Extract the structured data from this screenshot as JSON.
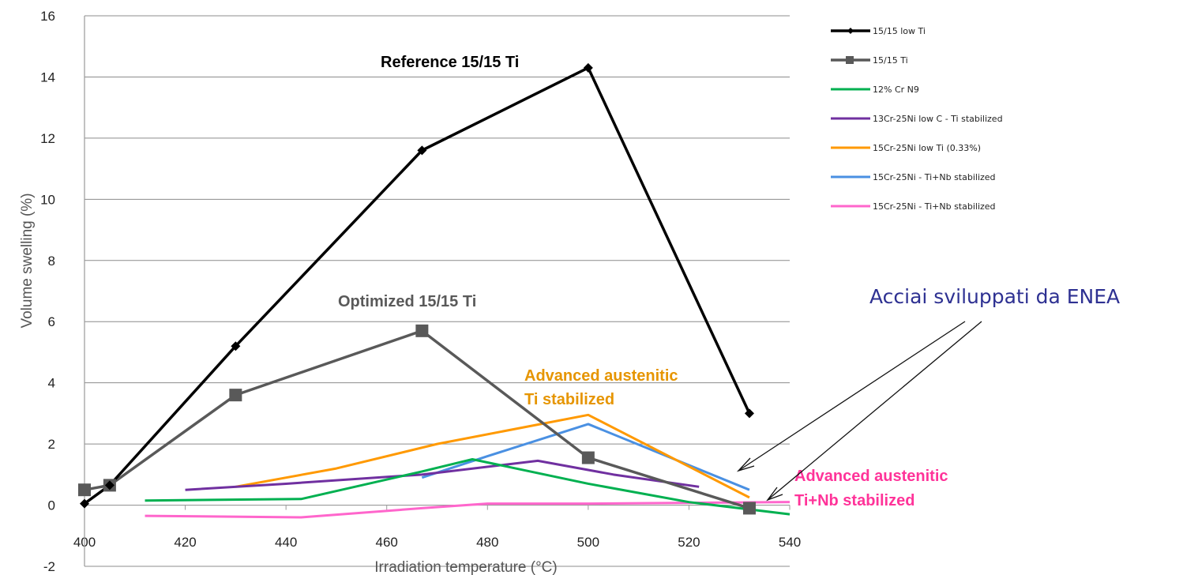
{
  "chart_data": {
    "type": "line",
    "xlabel": "Irradiation temperature (°C)",
    "ylabel": "Volume swelling (%)",
    "xlim": [
      400,
      540
    ],
    "ylim": [
      -2,
      16
    ],
    "x_ticks": [
      "400",
      "420",
      "440",
      "460",
      "480",
      "500",
      "520",
      "540"
    ],
    "y_ticks": [
      "-2",
      "0",
      "2",
      "4",
      "6",
      "8",
      "10",
      "12",
      "14",
      "16"
    ],
    "grid": "horizontal",
    "legend_position": "top-right",
    "series": [
      {
        "name": "15/15 low Ti",
        "color": "#000000",
        "marker": "diamond",
        "points": [
          [
            400,
            0.05
          ],
          [
            405,
            0.65
          ],
          [
            430,
            5.2
          ],
          [
            467,
            11.6
          ],
          [
            500,
            14.3
          ],
          [
            532,
            3.0
          ]
        ]
      },
      {
        "name": "15/15 Ti",
        "color": "#595959",
        "marker": "square",
        "points": [
          [
            400,
            0.5
          ],
          [
            405,
            0.65
          ],
          [
            430,
            3.6
          ],
          [
            467,
            5.7
          ],
          [
            500,
            1.55
          ],
          [
            532,
            -0.1
          ]
        ]
      },
      {
        "name": "12% Cr N9",
        "color": "#00b050",
        "marker": "none",
        "points": [
          [
            412,
            0.15
          ],
          [
            443,
            0.2
          ],
          [
            467,
            1.1
          ],
          [
            477,
            1.5
          ],
          [
            500,
            0.7
          ],
          [
            520,
            0.1
          ],
          [
            540,
            -0.3
          ]
        ]
      },
      {
        "name": "13Cr-25Ni low C - Ti stabilized",
        "color": "#7030a0",
        "marker": "none",
        "points": [
          [
            420,
            0.5
          ],
          [
            440,
            0.7
          ],
          [
            467,
            1.0
          ],
          [
            490,
            1.45
          ],
          [
            505,
            1.0
          ],
          [
            522,
            0.6
          ]
        ]
      },
      {
        "name": "15Cr-25Ni low Ti (0.33%)",
        "color": "#ff9900",
        "marker": "none",
        "points": [
          [
            430,
            0.6
          ],
          [
            450,
            1.2
          ],
          [
            470,
            2.0
          ],
          [
            500,
            2.95
          ],
          [
            532,
            0.25
          ]
        ]
      },
      {
        "name": "15Cr-25Ni - Ti+Nb stabilized",
        "color": "#4a90e2",
        "marker": "none",
        "points": [
          [
            467,
            0.9
          ],
          [
            480,
            1.6
          ],
          [
            500,
            2.65
          ],
          [
            532,
            0.5
          ]
        ]
      },
      {
        "name": "15Cr-25Ni - Ti+Nb stabilized",
        "color": "#ff66cc",
        "marker": "none",
        "points": [
          [
            412,
            -0.35
          ],
          [
            443,
            -0.4
          ],
          [
            467,
            -0.1
          ],
          [
            480,
            0.05
          ],
          [
            500,
            0.05
          ],
          [
            540,
            0.1
          ]
        ]
      }
    ],
    "annotations": [
      {
        "text": "Reference 15/15 Ti",
        "color": "#000000"
      },
      {
        "text": "Optimized 15/15 Ti",
        "color": "#595959"
      },
      {
        "text": "Advanced austenitic",
        "color": "#e69500"
      },
      {
        "text": "Ti stabilized",
        "color": "#e69500"
      },
      {
        "text": "Advanced austenitic",
        "color": "#ff3399"
      },
      {
        "text": "Ti+Nb stabilized",
        "color": "#ff3399"
      }
    ],
    "callout": {
      "text": "Acciai sviluppati da ENEA",
      "color": "#2e3192"
    }
  }
}
